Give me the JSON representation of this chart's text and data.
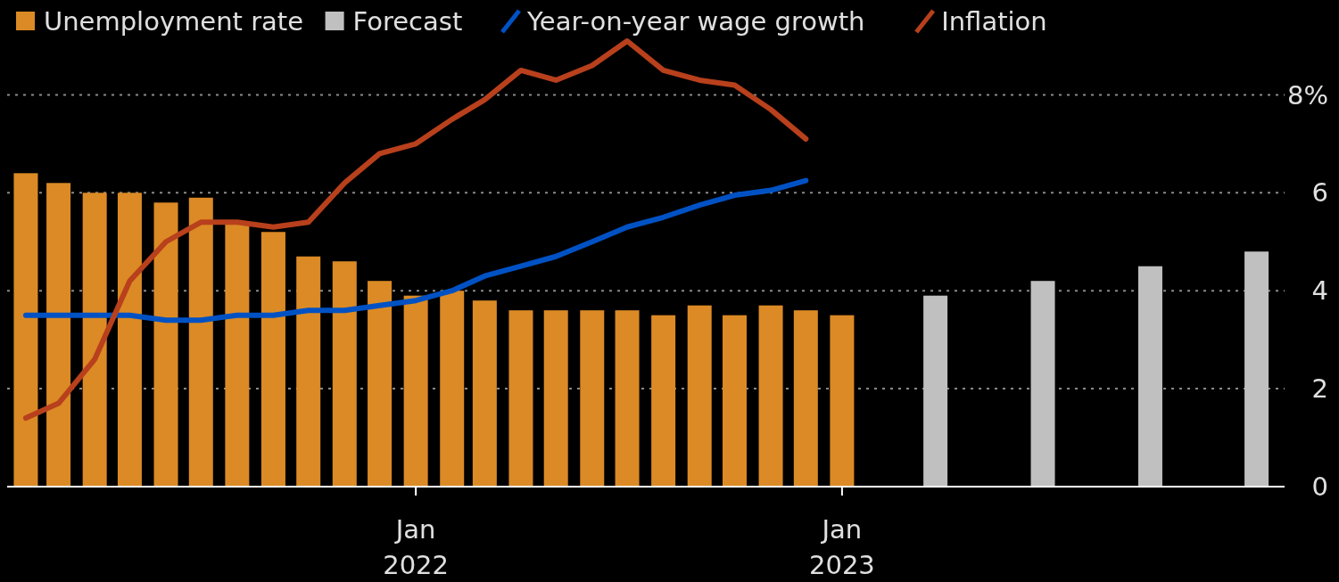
{
  "chart_data": {
    "type": "bar",
    "xlim": [
      "2021-01-16",
      "2024-01-15"
    ],
    "xticks": [
      {
        "value": "2022-01-01",
        "label": "Jan 2022"
      },
      {
        "value": "2023-01-01",
        "label": "Jan 2023"
      }
    ],
    "ylim": [
      0,
      9.9
    ],
    "yticks": [
      0,
      2,
      4,
      {
        "value": 6,
        "label": "6"
      },
      {
        "value": 8,
        "label": "8%"
      }
    ],
    "grid": "y",
    "legend": "top left",
    "series": [
      {
        "name": "Unemployment rate",
        "color": "#db8a25",
        "x": [
          "2021-02-01",
          "2021-03-01",
          "2021-04-01",
          "2021-05-01",
          "2021-06-01",
          "2021-07-01",
          "2021-08-01",
          "2021-09-01",
          "2021-10-01",
          "2021-11-01",
          "2021-12-01",
          "2022-01-01",
          "2022-02-01",
          "2022-03-01",
          "2022-04-01",
          "2022-05-01",
          "2022-06-01",
          "2022-07-01",
          "2022-08-01",
          "2022-09-01",
          "2022-10-01",
          "2022-11-01",
          "2022-12-01",
          "2023-01-01"
        ],
        "values": [
          6.4,
          6.2,
          6.0,
          6.0,
          5.8,
          5.9,
          5.4,
          5.2,
          4.7,
          4.6,
          4.2,
          3.9,
          4.0,
          3.8,
          3.6,
          3.6,
          3.6,
          3.6,
          3.5,
          3.7,
          3.5,
          3.7,
          3.6,
          3.5
        ]
      },
      {
        "name": "Forecast",
        "color": "#c0c0c0",
        "x": [
          "2023-03-22",
          "2023-06-22",
          "2023-09-22",
          "2023-12-22"
        ],
        "values": [
          3.9,
          4.2,
          4.5,
          4.8
        ]
      },
      {
        "name": "Year-on-year wage growth",
        "type": "line",
        "color": "#0052c4",
        "x": [
          "2021-02-01",
          "2021-03-01",
          "2021-04-01",
          "2021-05-01",
          "2021-06-01",
          "2021-07-01",
          "2021-08-01",
          "2021-09-01",
          "2021-10-01",
          "2021-11-01",
          "2021-12-01",
          "2022-01-01",
          "2022-02-01",
          "2022-03-01",
          "2022-04-01",
          "2022-05-01",
          "2022-06-01",
          "2022-07-01",
          "2022-08-01",
          "2022-09-01",
          "2022-10-01",
          "2022-11-01",
          "2022-12-01"
        ],
        "values": [
          3.5,
          3.5,
          3.5,
          3.5,
          3.4,
          3.4,
          3.5,
          3.5,
          3.6,
          3.6,
          3.7,
          3.8,
          4.0,
          4.3,
          4.5,
          4.7,
          5.0,
          5.3,
          5.5,
          5.75,
          5.95,
          6.05,
          6.25
        ]
      },
      {
        "name": "Inflation",
        "type": "line",
        "color": "#b8401c",
        "x": [
          "2021-02-01",
          "2021-03-01",
          "2021-04-01",
          "2021-05-01",
          "2021-06-01",
          "2021-07-01",
          "2021-08-01",
          "2021-09-01",
          "2021-10-01",
          "2021-11-01",
          "2021-12-01",
          "2022-01-01",
          "2022-02-01",
          "2022-03-01",
          "2022-04-01",
          "2022-05-01",
          "2022-06-01",
          "2022-07-01",
          "2022-08-01",
          "2022-09-01",
          "2022-10-01",
          "2022-11-01",
          "2022-12-01"
        ],
        "values": [
          1.4,
          1.7,
          2.6,
          4.2,
          5.0,
          5.4,
          5.4,
          5.3,
          5.4,
          6.2,
          6.8,
          7.0,
          7.5,
          7.9,
          8.5,
          8.3,
          8.6,
          9.1,
          8.5,
          8.3,
          8.2,
          7.7,
          7.1
        ]
      }
    ]
  }
}
